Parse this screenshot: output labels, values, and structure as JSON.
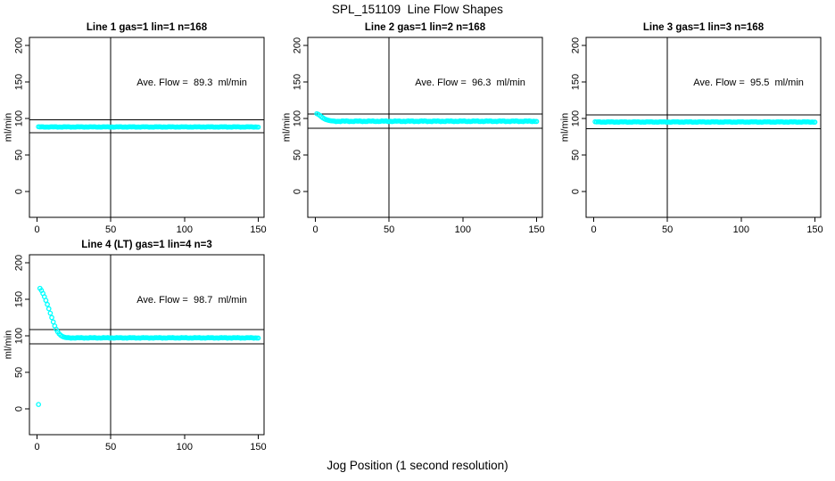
{
  "figure": {
    "title": "SPL_151109  Line Flow Shapes",
    "xlabel": "Jog Position (1 second resolution)",
    "background_color": "#ffffff",
    "line_color": "#000000",
    "marker_color": "#00FFFF"
  },
  "chart_data": [
    {
      "type": "scatter",
      "title": "Line 1 gas=1 lin=1 n=168",
      "annotation": "Ave. Flow =  89.3  ml/min",
      "annotation_xy": [
        105,
        150
      ],
      "ave_flow_ml_min": 89.3,
      "ylabel": "ml/min",
      "x_ticks": [
        0,
        50,
        100,
        150
      ],
      "y_ticks": [
        0,
        50,
        100,
        150,
        200
      ],
      "x_range": [
        0,
        150
      ],
      "y_range": [
        0,
        200
      ],
      "ref_vline_x": 50,
      "ref_hlines": [
        98.2,
        80.4
      ],
      "marker_color": "#00FFFF",
      "series": {
        "head_points": [],
        "plateau": {
          "x_from": 1,
          "x_to": 150,
          "y": 88.4,
          "jitter": 0.5
        },
        "extra_points": []
      }
    },
    {
      "type": "scatter",
      "title": "Line 2 gas=1 lin=2 n=168",
      "annotation": "Ave. Flow =  96.3  ml/min",
      "annotation_xy": [
        105,
        150
      ],
      "ave_flow_ml_min": 96.3,
      "ylabel": "ml/min",
      "x_ticks": [
        0,
        50,
        100,
        150
      ],
      "y_ticks": [
        0,
        50,
        100,
        150,
        200
      ],
      "x_range": [
        0,
        150
      ],
      "y_range": [
        0,
        200
      ],
      "ref_vline_x": 50,
      "ref_hlines": [
        105.9,
        86.7
      ],
      "marker_color": "#00FFFF",
      "series": {
        "head_points": [
          [
            1,
            106.5
          ],
          [
            2,
            105.6
          ],
          [
            3,
            104.2
          ],
          [
            4,
            102.5
          ],
          [
            5,
            101.0
          ],
          [
            6,
            99.7
          ],
          [
            7,
            98.7
          ],
          [
            8,
            98.0
          ],
          [
            9,
            97.4
          ],
          [
            10,
            97.0
          ],
          [
            11,
            96.7
          ]
        ],
        "plateau": {
          "x_from": 12,
          "x_to": 150,
          "y": 96.2,
          "jitter": 0.9
        },
        "extra_points": []
      }
    },
    {
      "type": "scatter",
      "title": "Line 3 gas=1 lin=3 n=168",
      "annotation": "Ave. Flow =  95.5  ml/min",
      "annotation_xy": [
        105,
        150
      ],
      "ave_flow_ml_min": 95.5,
      "ylabel": "ml/min",
      "x_ticks": [
        0,
        50,
        100,
        150
      ],
      "y_ticks": [
        0,
        50,
        100,
        150,
        200
      ],
      "x_range": [
        0,
        150
      ],
      "y_range": [
        0,
        200
      ],
      "ref_vline_x": 50,
      "ref_hlines": [
        105.1,
        86.0
      ],
      "marker_color": "#00FFFF",
      "series": {
        "head_points": [],
        "plateau": {
          "x_from": 1,
          "x_to": 150,
          "y": 95.2,
          "jitter": 0.6
        },
        "extra_points": []
      }
    },
    {
      "type": "scatter",
      "title": "Line 4 (LT) gas=1 lin=4 n=3",
      "annotation": "Ave. Flow =  98.7  ml/min",
      "annotation_xy": [
        105,
        150
      ],
      "ave_flow_ml_min": 98.7,
      "ylabel": "ml/min",
      "x_ticks": [
        0,
        50,
        100,
        150
      ],
      "y_ticks": [
        0,
        50,
        100,
        150,
        200
      ],
      "x_range": [
        0,
        150
      ],
      "y_range": [
        0,
        200
      ],
      "ref_vline_x": 50,
      "ref_hlines": [
        108.6,
        88.8
      ],
      "marker_color": "#00FFFF",
      "series": {
        "head_points": [
          [
            2,
            165
          ],
          [
            3,
            162
          ],
          [
            4,
            158
          ],
          [
            5,
            153.5
          ],
          [
            6,
            148.5
          ],
          [
            7,
            143
          ],
          [
            8,
            137
          ],
          [
            9,
            131
          ],
          [
            10,
            125
          ],
          [
            11,
            119
          ],
          [
            12,
            113.5
          ],
          [
            13,
            109
          ],
          [
            14,
            105.5
          ],
          [
            15,
            102.8
          ],
          [
            16,
            100.8
          ],
          [
            17,
            99.4
          ],
          [
            18,
            98.5
          ],
          [
            19,
            97.9
          ],
          [
            20,
            97.5
          ]
        ],
        "plateau": {
          "x_from": 21,
          "x_to": 150,
          "y": 97.2,
          "jitter": 0.7
        },
        "extra_points": [
          [
            1,
            6
          ]
        ]
      }
    }
  ]
}
